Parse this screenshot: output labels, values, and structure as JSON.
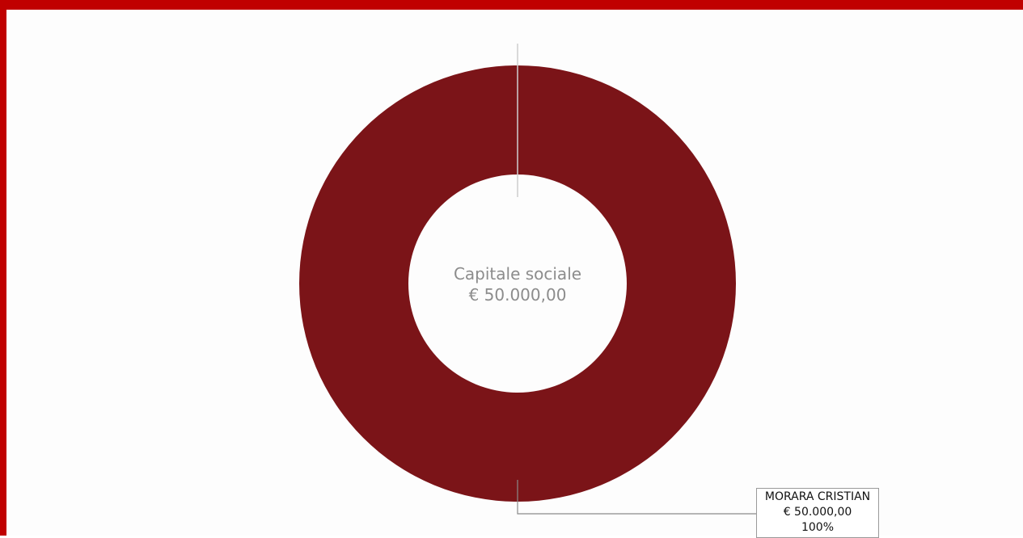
{
  "chart_data": {
    "type": "pie",
    "variant": "donut",
    "center_title": "Capitale sociale",
    "center_value": "€ 50.000,00",
    "slices": [
      {
        "label": "MORARA CRISTIAN",
        "value": 50000,
        "value_text": "€ 50.000,00",
        "percent_text": "100%",
        "color": "#7b1418"
      }
    ]
  },
  "colors": {
    "accent_border": "#c00000",
    "slice": "#7b1418",
    "center_text": "#8c8c8c"
  }
}
